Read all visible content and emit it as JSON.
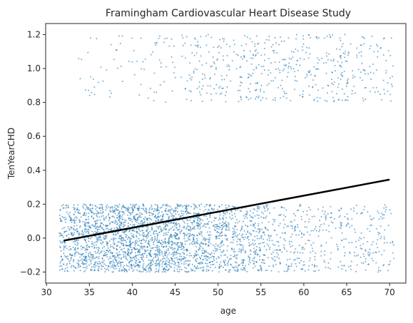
{
  "chart_data": {
    "type": "scatter",
    "title": "Framingham Cardiovascular Heart Disease Study",
    "xlabel": "age",
    "ylabel": "TenYearCHD",
    "xlim": [
      29.9,
      71.9
    ],
    "ylim": [
      -0.265,
      1.265
    ],
    "xticks": [
      30,
      35,
      40,
      45,
      50,
      55,
      60,
      65,
      70
    ],
    "yticks": [
      -0.2,
      0.0,
      0.2,
      0.4,
      0.6,
      0.8,
      1.0,
      1.2
    ],
    "grid": false,
    "colors": {
      "points": "#1f77b4",
      "fit_line": "#000000",
      "axes": "#262626"
    },
    "point_groups": [
      {
        "outcome": 0,
        "x_range": [
          32,
          70
        ],
        "jitter": [
          -0.2,
          0.2
        ],
        "count": 3100,
        "age_peak": 41
      },
      {
        "outcome": 1,
        "x_range": [
          34,
          70
        ],
        "jitter": [
          -0.2,
          0.2
        ],
        "count": 580,
        "age_peak": 58
      }
    ],
    "fit_line": {
      "type": "line",
      "x": [
        32,
        70
      ],
      "y": [
        -0.015,
        0.345
      ]
    }
  }
}
